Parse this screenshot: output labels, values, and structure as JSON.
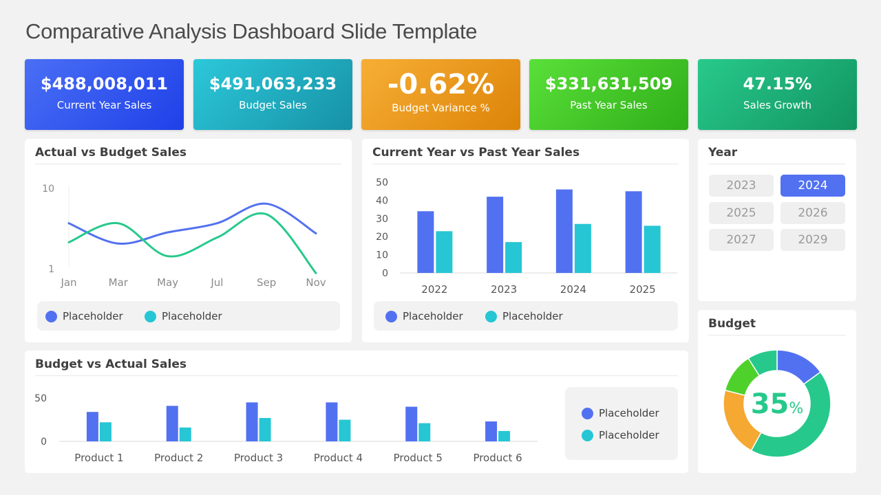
{
  "title": "Comparative Analysis Dashboard Slide Template",
  "colors": {
    "blue": "#5271f0",
    "teal": "#26c6d4",
    "green": "#26c98b",
    "orange": "#f5a832",
    "lime": "#4ed12b"
  },
  "kpis": [
    {
      "value": "$488,008,011",
      "label": "Current Year Sales"
    },
    {
      "value": "$491,063,233",
      "label": "Budget Sales"
    },
    {
      "value": "-0.62%",
      "label": "Budget Variance %"
    },
    {
      "value": "$331,631,509",
      "label": "Past Year Sales"
    },
    {
      "value": "47.15%",
      "label": "Sales Growth"
    }
  ],
  "actual_vs_budget": {
    "title": "Actual vs Budget Sales",
    "legend": [
      "Placeholder",
      "Placeholder"
    ]
  },
  "current_vs_past": {
    "title": "Current Year vs Past Year Sales",
    "legend": [
      "Placeholder",
      "Placeholder"
    ]
  },
  "budget_vs_actual": {
    "title": "Budget vs Actual Sales",
    "legend": [
      "Placeholder",
      "Placeholder"
    ]
  },
  "year_panel": {
    "title": "Year",
    "years": [
      "2023",
      "2024",
      "2025",
      "2026",
      "2027",
      "2029"
    ],
    "selected": "2024"
  },
  "budget_panel": {
    "title": "Budget",
    "percent_value": "35",
    "percent_sign": "%"
  },
  "chart_data": [
    {
      "type": "line",
      "title": "Actual vs Budget Sales",
      "x": [
        "Jan",
        "Mar",
        "May",
        "Jul",
        "Sep",
        "Nov"
      ],
      "yscale": "log",
      "ylim": [
        1,
        10
      ],
      "yticks": [
        "10",
        "1"
      ],
      "series": [
        {
          "name": "Placeholder",
          "color": "#5271f0",
          "values": [
            4.7,
            2.6,
            3.6,
            4.7,
            8.3,
            3.5
          ]
        },
        {
          "name": "Placeholder",
          "color": "#26c98b",
          "values": [
            2.7,
            4.7,
            1.8,
            3.1,
            6.1,
            1.1
          ]
        }
      ]
    },
    {
      "type": "bar",
      "title": "Current Year vs Past Year Sales",
      "categories": [
        "2022",
        "2023",
        "2024",
        "2025"
      ],
      "ylim": [
        0,
        50
      ],
      "yticks": [
        "50",
        "40",
        "30",
        "20",
        "10",
        "0"
      ],
      "series": [
        {
          "name": "Placeholder",
          "color": "#5271f0",
          "values": [
            34,
            42,
            46,
            45
          ]
        },
        {
          "name": "Placeholder",
          "color": "#26c6d4",
          "values": [
            23,
            17,
            27,
            26
          ]
        }
      ]
    },
    {
      "type": "bar",
      "title": "Budget vs Actual Sales",
      "categories": [
        "Product 1",
        "Product 2",
        "Product 3",
        "Product 4",
        "Product 5",
        "Product 6"
      ],
      "ylim": [
        0,
        50
      ],
      "yticks": [
        "50",
        "0"
      ],
      "series": [
        {
          "name": "Placeholder",
          "color": "#5271f0",
          "values": [
            34,
            41,
            45,
            45,
            40,
            23
          ]
        },
        {
          "name": "Placeholder",
          "color": "#26c6d4",
          "values": [
            22,
            16,
            27,
            25,
            21,
            12
          ]
        }
      ]
    },
    {
      "type": "pie",
      "title": "Budget",
      "donut": true,
      "slices": [
        {
          "value": 15,
          "color": "#5271f0"
        },
        {
          "value": 43,
          "color": "#26c98b"
        },
        {
          "value": 21,
          "color": "#f5a832"
        },
        {
          "value": 12,
          "color": "#4ed12b"
        },
        {
          "value": 9,
          "color": "#26c98b"
        }
      ]
    }
  ]
}
